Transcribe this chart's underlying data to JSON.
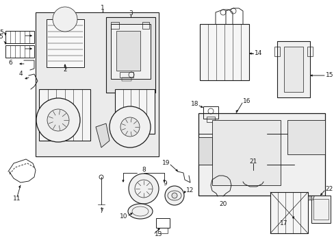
{
  "bg_color": "#ffffff",
  "line_color": "#1a1a1a",
  "fill_color": "#e8e8e8",
  "lw": 0.65,
  "fs": 6.5,
  "figsize": [
    4.89,
    3.6
  ],
  "dpi": 100
}
